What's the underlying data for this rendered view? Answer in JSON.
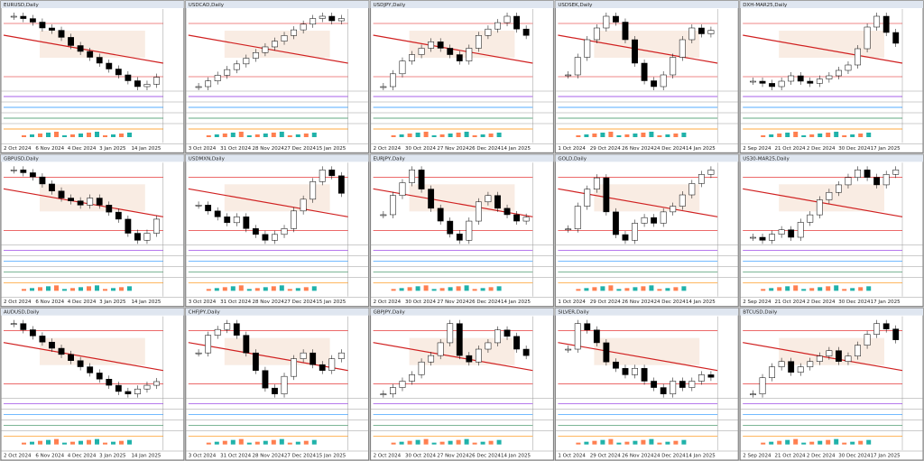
{
  "panes": [
    {
      "title": "EURUSD,Daily",
      "closes": [
        90,
        88,
        85,
        80,
        78,
        72,
        65,
        60,
        55,
        50,
        45,
        40,
        35,
        30,
        32,
        38
      ],
      "dates": [
        "2 Oct 2024",
        "6 Nov 2024",
        "4 Dec 2024",
        "3 Jan 2025",
        "14 Jan 2025"
      ]
    },
    {
      "title": "USDCAD,Daily",
      "closes": [
        20,
        25,
        30,
        35,
        40,
        45,
        50,
        55,
        60,
        65,
        70,
        75,
        80,
        82,
        78,
        80
      ],
      "dates": [
        "3 Oct 2024",
        "31 Oct 2024",
        "28 Nov 2024",
        "27 Dec 2024",
        "15 Jan 2025"
      ]
    },
    {
      "title": "USDJPY,Daily",
      "closes": [
        30,
        40,
        50,
        55,
        60,
        65,
        60,
        55,
        50,
        60,
        70,
        75,
        80,
        85,
        75,
        70
      ],
      "dates": [
        "2 Oct 2024",
        "30 Oct 2024",
        "27 Nov 2024",
        "26 Dec 2024",
        "14 Jan 2025"
      ]
    },
    {
      "title": "USDSEK,Daily",
      "closes": [
        40,
        55,
        70,
        80,
        90,
        85,
        70,
        50,
        35,
        30,
        40,
        55,
        70,
        80,
        75,
        78
      ],
      "dates": [
        "1 Oct 2024",
        "29 Oct 2024",
        "26 Nov 2024",
        "24 Dec 2024",
        "14 Jan 2025"
      ]
    },
    {
      "title": "DXH-MAR25,Daily",
      "closes": [
        30,
        28,
        25,
        30,
        35,
        30,
        28,
        32,
        35,
        40,
        45,
        60,
        80,
        90,
        75,
        65
      ],
      "dates": [
        "2 Sep 2024",
        "21 Oct 2024",
        "2 Dec 2024",
        "30 Dec 2024",
        "17 Jan 2025"
      ]
    },
    {
      "title": "GBPUSD,Daily",
      "closes": [
        80,
        78,
        75,
        70,
        65,
        60,
        58,
        55,
        60,
        55,
        50,
        45,
        35,
        30,
        35,
        45
      ],
      "dates": [
        "2 Oct 2024",
        "6 Nov 2024",
        "4 Dec 2024",
        "3 Jan 2025",
        "14 Jan 2025"
      ]
    },
    {
      "title": "USDMXN,Daily",
      "closes": [
        60,
        55,
        50,
        45,
        50,
        40,
        35,
        30,
        35,
        40,
        55,
        65,
        80,
        90,
        85,
        70
      ],
      "dates": [
        "3 Oct 2024",
        "31 Oct 2024",
        "28 Nov 2024",
        "27 Dec 2024",
        "15 Jan 2025"
      ]
    },
    {
      "title": "EURJPY,Daily",
      "closes": [
        50,
        65,
        75,
        85,
        70,
        55,
        45,
        35,
        30,
        45,
        60,
        65,
        55,
        50,
        45,
        48
      ],
      "dates": [
        "2 Oct 2024",
        "30 Oct 2024",
        "27 Nov 2024",
        "26 Dec 2024",
        "14 Jan 2025"
      ]
    },
    {
      "title": "GOLD,Daily",
      "closes": [
        40,
        60,
        75,
        85,
        55,
        35,
        30,
        45,
        50,
        45,
        55,
        60,
        70,
        80,
        88,
        92
      ],
      "dates": [
        "1 Oct 2024",
        "29 Oct 2024",
        "26 Nov 2024",
        "24 Dec 2024",
        "14 Jan 2025"
      ]
    },
    {
      "title": "US30-MAR25,Daily",
      "closes": [
        30,
        28,
        32,
        35,
        30,
        40,
        45,
        55,
        60,
        65,
        70,
        75,
        70,
        65,
        72,
        75
      ],
      "dates": [
        "2 Sep 2024",
        "21 Oct 2024",
        "2 Dec 2024",
        "30 Dec 2024",
        "17 Jan 2025"
      ]
    },
    {
      "title": "AUDUSD,Daily",
      "closes": [
        85,
        80,
        75,
        70,
        65,
        60,
        55,
        50,
        45,
        40,
        35,
        30,
        28,
        32,
        35,
        38
      ],
      "dates": [
        "2 Oct 2024",
        "6 Nov 2024",
        "4 Dec 2024",
        "3 Jan 2025",
        "14 Jan 2025"
      ]
    },
    {
      "title": "CHFJPY,Daily",
      "closes": [
        60,
        75,
        80,
        85,
        75,
        60,
        45,
        30,
        25,
        40,
        55,
        60,
        50,
        45,
        55,
        60
      ],
      "dates": [
        "3 Oct 2024",
        "31 Oct 2024",
        "28 Nov 2024",
        "27 Dec 2024",
        "15 Jan 2025"
      ]
    },
    {
      "title": "GBPJPY,Daily",
      "closes": [
        30,
        35,
        40,
        45,
        55,
        60,
        70,
        85,
        60,
        55,
        65,
        70,
        80,
        75,
        65,
        60
      ],
      "dates": [
        "2 Oct 2024",
        "30 Oct 2024",
        "27 Nov 2024",
        "26 Dec 2024",
        "14 Jan 2025"
      ]
    },
    {
      "title": "SILVER,Daily",
      "closes": [
        70,
        90,
        85,
        75,
        60,
        55,
        50,
        55,
        45,
        40,
        35,
        45,
        40,
        45,
        50,
        48
      ],
      "dates": [
        "1 Oct 2024",
        "29 Oct 2024",
        "26 Nov 2024",
        "24 Dec 2024",
        "14 Jan 2025"
      ]
    },
    {
      "title": "BTCUSD,Daily",
      "closes": [
        30,
        45,
        55,
        60,
        50,
        55,
        60,
        65,
        70,
        60,
        65,
        75,
        85,
        95,
        90,
        80
      ],
      "dates": [
        "2 Sep 2024",
        "21 Oct 2024",
        "2 Dec 2024",
        "30 Dec 2024",
        "17 Jan 2025"
      ]
    }
  ]
}
